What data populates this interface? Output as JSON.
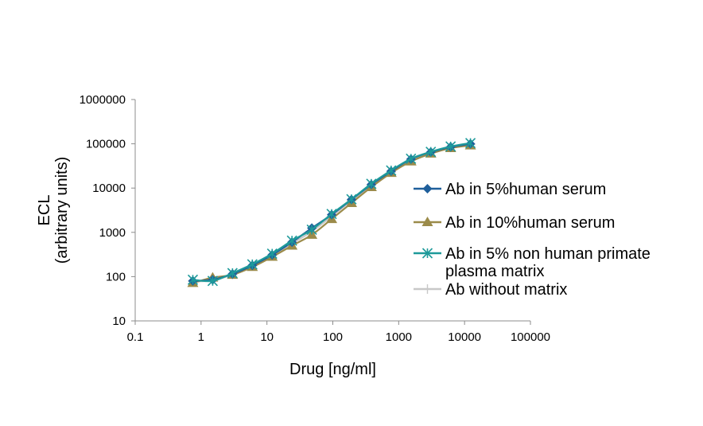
{
  "chart_data": {
    "type": "line",
    "x_scale": "log",
    "y_scale": "log",
    "xlabel": "Drug [ng/ml]",
    "ylabel_lines": [
      "ECL",
      "(arbitrary units)"
    ],
    "xlim": [
      0.1,
      100000
    ],
    "ylim": [
      10,
      1000000
    ],
    "x_ticks": [
      0.1,
      1,
      10,
      100,
      1000,
      10000,
      100000
    ],
    "x_tick_labels": [
      "0.1",
      "1",
      "10",
      "100",
      "1000",
      "10000",
      "100000"
    ],
    "y_ticks": [
      10,
      100,
      1000,
      10000,
      100000,
      1000000
    ],
    "y_tick_labels": [
      "10",
      "100",
      "1000",
      "10000",
      "100000",
      "1000000"
    ],
    "grid": false,
    "legend_position": "right",
    "x": [
      0.75,
      1.5,
      3,
      6,
      12,
      24,
      48,
      96,
      192,
      384,
      768,
      1536,
      3072,
      6144,
      12288
    ],
    "series": [
      {
        "name": "Ab in 5%human serum",
        "legend_lines": [
          "Ab in 5%human serum"
        ],
        "color": "#1F5F9B",
        "marker": "diamond",
        "values": [
          80,
          85,
          115,
          180,
          310,
          600,
          1250,
          2500,
          5500,
          12000,
          24000,
          45000,
          65000,
          85000,
          100000
        ]
      },
      {
        "name": "Ab in 10%human serum",
        "legend_lines": [
          "Ab in 10%human serum"
        ],
        "color": "#9B8B4A",
        "marker": "triangle",
        "values": [
          72,
          95,
          110,
          165,
          280,
          500,
          880,
          2000,
          4600,
          10500,
          22000,
          40000,
          60000,
          80000,
          92000
        ]
      },
      {
        "name": "Ab in 5% non human primate plasma matrix",
        "legend_lines": [
          "Ab in 5% non human primate",
          "plasma matrix"
        ],
        "color": "#1E9A9A",
        "marker": "asterisk",
        "values": [
          85,
          80,
          120,
          190,
          330,
          650,
          1150,
          2600,
          5600,
          12500,
          25000,
          46000,
          66000,
          87000,
          104000
        ]
      },
      {
        "name": "Ab without matrix",
        "legend_lines": [
          "Ab without matrix"
        ],
        "color": "#C8C8C8",
        "marker": "plus",
        "values": [
          78,
          82,
          112,
          175,
          300,
          560,
          1050,
          2300,
          5200,
          11500,
          23000,
          43000,
          63000,
          83000,
          97000
        ]
      }
    ]
  }
}
